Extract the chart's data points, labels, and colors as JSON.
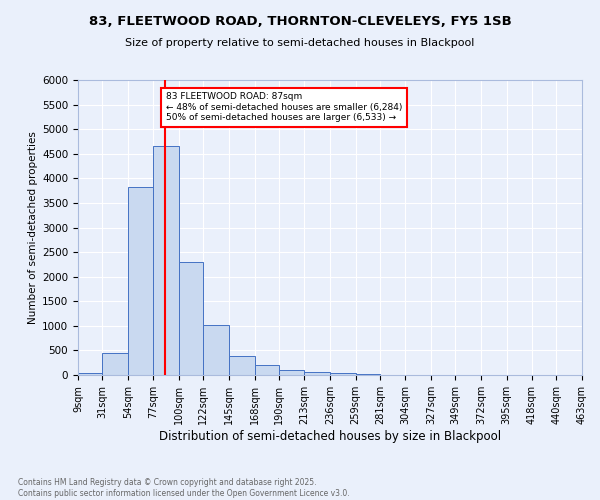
{
  "title": "83, FLEETWOOD ROAD, THORNTON-CLEVELEYS, FY5 1SB",
  "subtitle": "Size of property relative to semi-detached houses in Blackpool",
  "xlabel": "Distribution of semi-detached houses by size in Blackpool",
  "ylabel": "Number of semi-detached properties",
  "bar_color": "#c9d9f0",
  "bar_edge_color": "#4472c4",
  "background_color": "#eaf0fb",
  "grid_color": "white",
  "property_line_x": 87,
  "annotation_text": "83 FLEETWOOD ROAD: 87sqm\n← 48% of semi-detached houses are smaller (6,284)\n50% of semi-detached houses are larger (6,533) →",
  "annotation_box_color": "white",
  "annotation_box_edge": "red",
  "annotation_line_color": "red",
  "footer_text": "Contains HM Land Registry data © Crown copyright and database right 2025.\nContains public sector information licensed under the Open Government Licence v3.0.",
  "bin_edges": [
    9,
    31,
    54,
    77,
    100,
    122,
    145,
    168,
    190,
    213,
    236,
    259,
    281,
    304,
    327,
    349,
    372,
    395,
    418,
    440,
    463
  ],
  "bin_labels": [
    "9sqm",
    "31sqm",
    "54sqm",
    "77sqm",
    "100sqm",
    "122sqm",
    "145sqm",
    "168sqm",
    "190sqm",
    "213sqm",
    "236sqm",
    "259sqm",
    "281sqm",
    "304sqm",
    "327sqm",
    "349sqm",
    "372sqm",
    "395sqm",
    "418sqm",
    "440sqm",
    "463sqm"
  ],
  "counts": [
    40,
    450,
    3820,
    4660,
    2300,
    1020,
    390,
    195,
    110,
    60,
    50,
    30,
    10,
    0,
    0,
    0,
    0,
    0,
    0,
    0
  ],
  "ylim": [
    0,
    6000
  ],
  "yticks": [
    0,
    500,
    1000,
    1500,
    2000,
    2500,
    3000,
    3500,
    4000,
    4500,
    5000,
    5500,
    6000
  ]
}
